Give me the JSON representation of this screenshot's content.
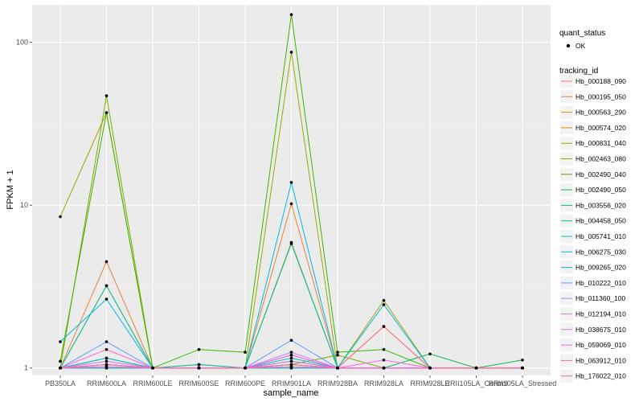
{
  "chart_data": {
    "type": "line",
    "xlabel": "sample_name",
    "ylabel": "FPKM + 1",
    "y_scale": "log10",
    "ylim": [
      0.9,
      170
    ],
    "y_ticks": [
      {
        "value": 1,
        "label": "1"
      },
      {
        "value": 10,
        "label": "10"
      },
      {
        "value": 100,
        "label": "100"
      }
    ],
    "categories": [
      "PB350LA",
      "RRIM600LA",
      "RRIM600LE",
      "RRIM600SE",
      "RRIM600PE",
      "RRIM901LA",
      "RRIM928BA",
      "RRIM928LA",
      "RRIM928LE",
      "RRII105LA_Control",
      "RRII105LA_Stressed"
    ],
    "background": "#ebebeb",
    "grid": true,
    "legend_position": "right",
    "point_legend": {
      "title": "quant_status",
      "label": "OK"
    },
    "color_legend_title": "tracking_id",
    "series": [
      {
        "name": "Hb_000188_090",
        "color": "#F8766D",
        "values": [
          1.0,
          1.05,
          1.0,
          1.0,
          1.0,
          1.05,
          1.0,
          1.0,
          1.0,
          1.0,
          1.0
        ]
      },
      {
        "name": "Hb_000195_050",
        "color": "#EA8331",
        "values": [
          1.0,
          4.5,
          1.0,
          1.0,
          1.0,
          10.2,
          1.0,
          1.0,
          1.0,
          1.0,
          1.0
        ]
      },
      {
        "name": "Hb_000563_290",
        "color": "#D89000",
        "values": [
          1.0,
          1.05,
          1.0,
          1.0,
          1.0,
          1.05,
          1.0,
          1.0,
          1.0,
          1.0,
          1.0
        ]
      },
      {
        "name": "Hb_000574_020",
        "color": "#C09B00",
        "values": [
          1.0,
          3.2,
          1.0,
          1.0,
          1.0,
          5.9,
          1.0,
          1.8,
          1.0,
          1.0,
          1.0
        ]
      },
      {
        "name": "Hb_000831_040",
        "color": "#A3A500",
        "values": [
          8.5,
          37,
          1.0,
          1.0,
          1.0,
          87,
          1.0,
          2.6,
          1.0,
          1.0,
          1.0
        ]
      },
      {
        "name": "Hb_002463_080",
        "color": "#7CAE00",
        "values": [
          1.0,
          47,
          1.0,
          1.0,
          1.0,
          1.05,
          1.2,
          1.0,
          1.0,
          1.0,
          1.0
        ]
      },
      {
        "name": "Hb_002490_040",
        "color": "#39B600",
        "values": [
          1.1,
          37,
          1.0,
          1.3,
          1.25,
          148,
          1.25,
          1.3,
          1.0,
          1.0,
          1.0
        ]
      },
      {
        "name": "Hb_002490_050",
        "color": "#00BB4E",
        "values": [
          1.0,
          1.15,
          1.0,
          1.05,
          1.0,
          1.1,
          1.0,
          1.0,
          1.22,
          1.0,
          1.12
        ]
      },
      {
        "name": "Hb_003556_020",
        "color": "#00BF7D",
        "values": [
          1.0,
          1.0,
          1.0,
          1.0,
          1.0,
          1.0,
          1.0,
          1.0,
          1.0,
          1.0,
          1.0
        ]
      },
      {
        "name": "Hb_004458_050",
        "color": "#00C1A3",
        "values": [
          1.0,
          3.2,
          1.0,
          1.05,
          1.0,
          5.8,
          1.0,
          1.0,
          1.0,
          1.0,
          1.0
        ]
      },
      {
        "name": "Hb_005741_010",
        "color": "#00BFC4",
        "values": [
          1.0,
          1.15,
          1.0,
          1.0,
          1.0,
          1.15,
          1.0,
          1.0,
          1.0,
          1.0,
          1.0
        ]
      },
      {
        "name": "Hb_006275_030",
        "color": "#00B8E5",
        "values": [
          1.45,
          2.65,
          1.0,
          1.0,
          1.0,
          13.8,
          1.0,
          2.45,
          1.0,
          1.0,
          1.0
        ]
      },
      {
        "name": "Hb_009265_020",
        "color": "#00A9FF",
        "values": [
          1.0,
          1.0,
          1.0,
          1.0,
          1.0,
          1.0,
          1.0,
          1.0,
          1.0,
          1.0,
          1.0
        ]
      },
      {
        "name": "Hb_010222_010",
        "color": "#619CFF",
        "values": [
          1.0,
          1.45,
          1.0,
          1.0,
          1.0,
          1.48,
          1.0,
          1.0,
          1.0,
          1.0,
          1.0
        ]
      },
      {
        "name": "Hb_011360_100",
        "color": "#9F8CFF",
        "values": [
          1.0,
          1.05,
          1.0,
          1.0,
          1.0,
          1.2,
          1.0,
          1.0,
          1.0,
          1.0,
          1.0
        ]
      },
      {
        "name": "Hb_012194_010",
        "color": "#C77CFF",
        "values": [
          1.0,
          1.05,
          1.0,
          1.0,
          1.0,
          1.25,
          1.0,
          1.0,
          1.0,
          1.0,
          1.0
        ]
      },
      {
        "name": "Hb_038675_010",
        "color": "#E76BF3",
        "values": [
          1.0,
          1.1,
          1.0,
          1.0,
          1.0,
          1.1,
          1.0,
          1.0,
          1.0,
          1.0,
          1.0
        ]
      },
      {
        "name": "Hb_059069_010",
        "color": "#FA62DB",
        "values": [
          1.0,
          1.3,
          1.0,
          1.0,
          1.0,
          1.2,
          1.0,
          1.12,
          1.0,
          1.0,
          1.0
        ]
      },
      {
        "name": "Hb_063912_010",
        "color": "#FF62BC",
        "values": [
          1.0,
          1.05,
          1.0,
          1.0,
          1.0,
          1.05,
          1.0,
          1.0,
          1.0,
          1.0,
          1.0
        ]
      },
      {
        "name": "Hb_176022_010",
        "color": "#FF6C91",
        "values": [
          1.0,
          1.02,
          1.0,
          1.0,
          1.0,
          1.02,
          1.0,
          1.8,
          1.0,
          1.0,
          1.0
        ]
      }
    ]
  }
}
